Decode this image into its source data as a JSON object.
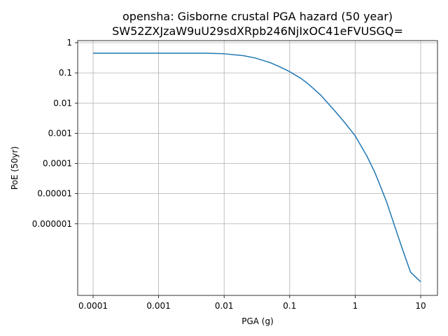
{
  "chart_data": {
    "type": "line",
    "title": "opensha: Gisborne crustal PGA hazard (50 year)",
    "subtitle": "SW52ZXJzaW9uU29sdXRpb246NjIxOC41eFVUSGQ=",
    "xlabel": "PGA (g)",
    "ylabel": "PoE (50yr)",
    "x_scale": "log",
    "y_scale": "log",
    "xlim": [
      0.0001,
      10
    ],
    "ylim": [
      1e-08,
      1
    ],
    "grid": true,
    "x_ticks": [
      {
        "value": 0.0001,
        "label": "0.0001"
      },
      {
        "value": 0.001,
        "label": "0.001"
      },
      {
        "value": 0.01,
        "label": "0.01"
      },
      {
        "value": 0.1,
        "label": "0.1"
      },
      {
        "value": 1,
        "label": "1"
      },
      {
        "value": 10,
        "label": "10"
      }
    ],
    "y_ticks": [
      {
        "value": 1,
        "label": "1"
      },
      {
        "value": 0.1,
        "label": "0.1"
      },
      {
        "value": 0.01,
        "label": "0.01"
      },
      {
        "value": 0.001,
        "label": "0.001"
      },
      {
        "value": 0.0001,
        "label": "0.0001"
      },
      {
        "value": 1e-05,
        "label": "0.00001"
      },
      {
        "value": 1e-06,
        "label": "0.000001"
      }
    ],
    "series": [
      {
        "color": "#1f77b4",
        "x": [
          0.0001,
          0.001,
          0.003,
          0.005,
          0.01,
          0.02,
          0.03,
          0.05,
          0.07,
          0.1,
          0.15,
          0.2,
          0.3,
          0.5,
          0.7,
          1,
          1.5,
          2,
          3,
          5,
          7,
          10
        ],
        "y": [
          0.45,
          0.45,
          0.45,
          0.448,
          0.43,
          0.37,
          0.31,
          0.22,
          0.16,
          0.11,
          0.065,
          0.04,
          0.018,
          0.0052,
          0.0022,
          0.00082,
          0.00018,
          5e-05,
          5.5e-06,
          2e-07,
          2.5e-08,
          1.2e-08
        ]
      }
    ]
  }
}
